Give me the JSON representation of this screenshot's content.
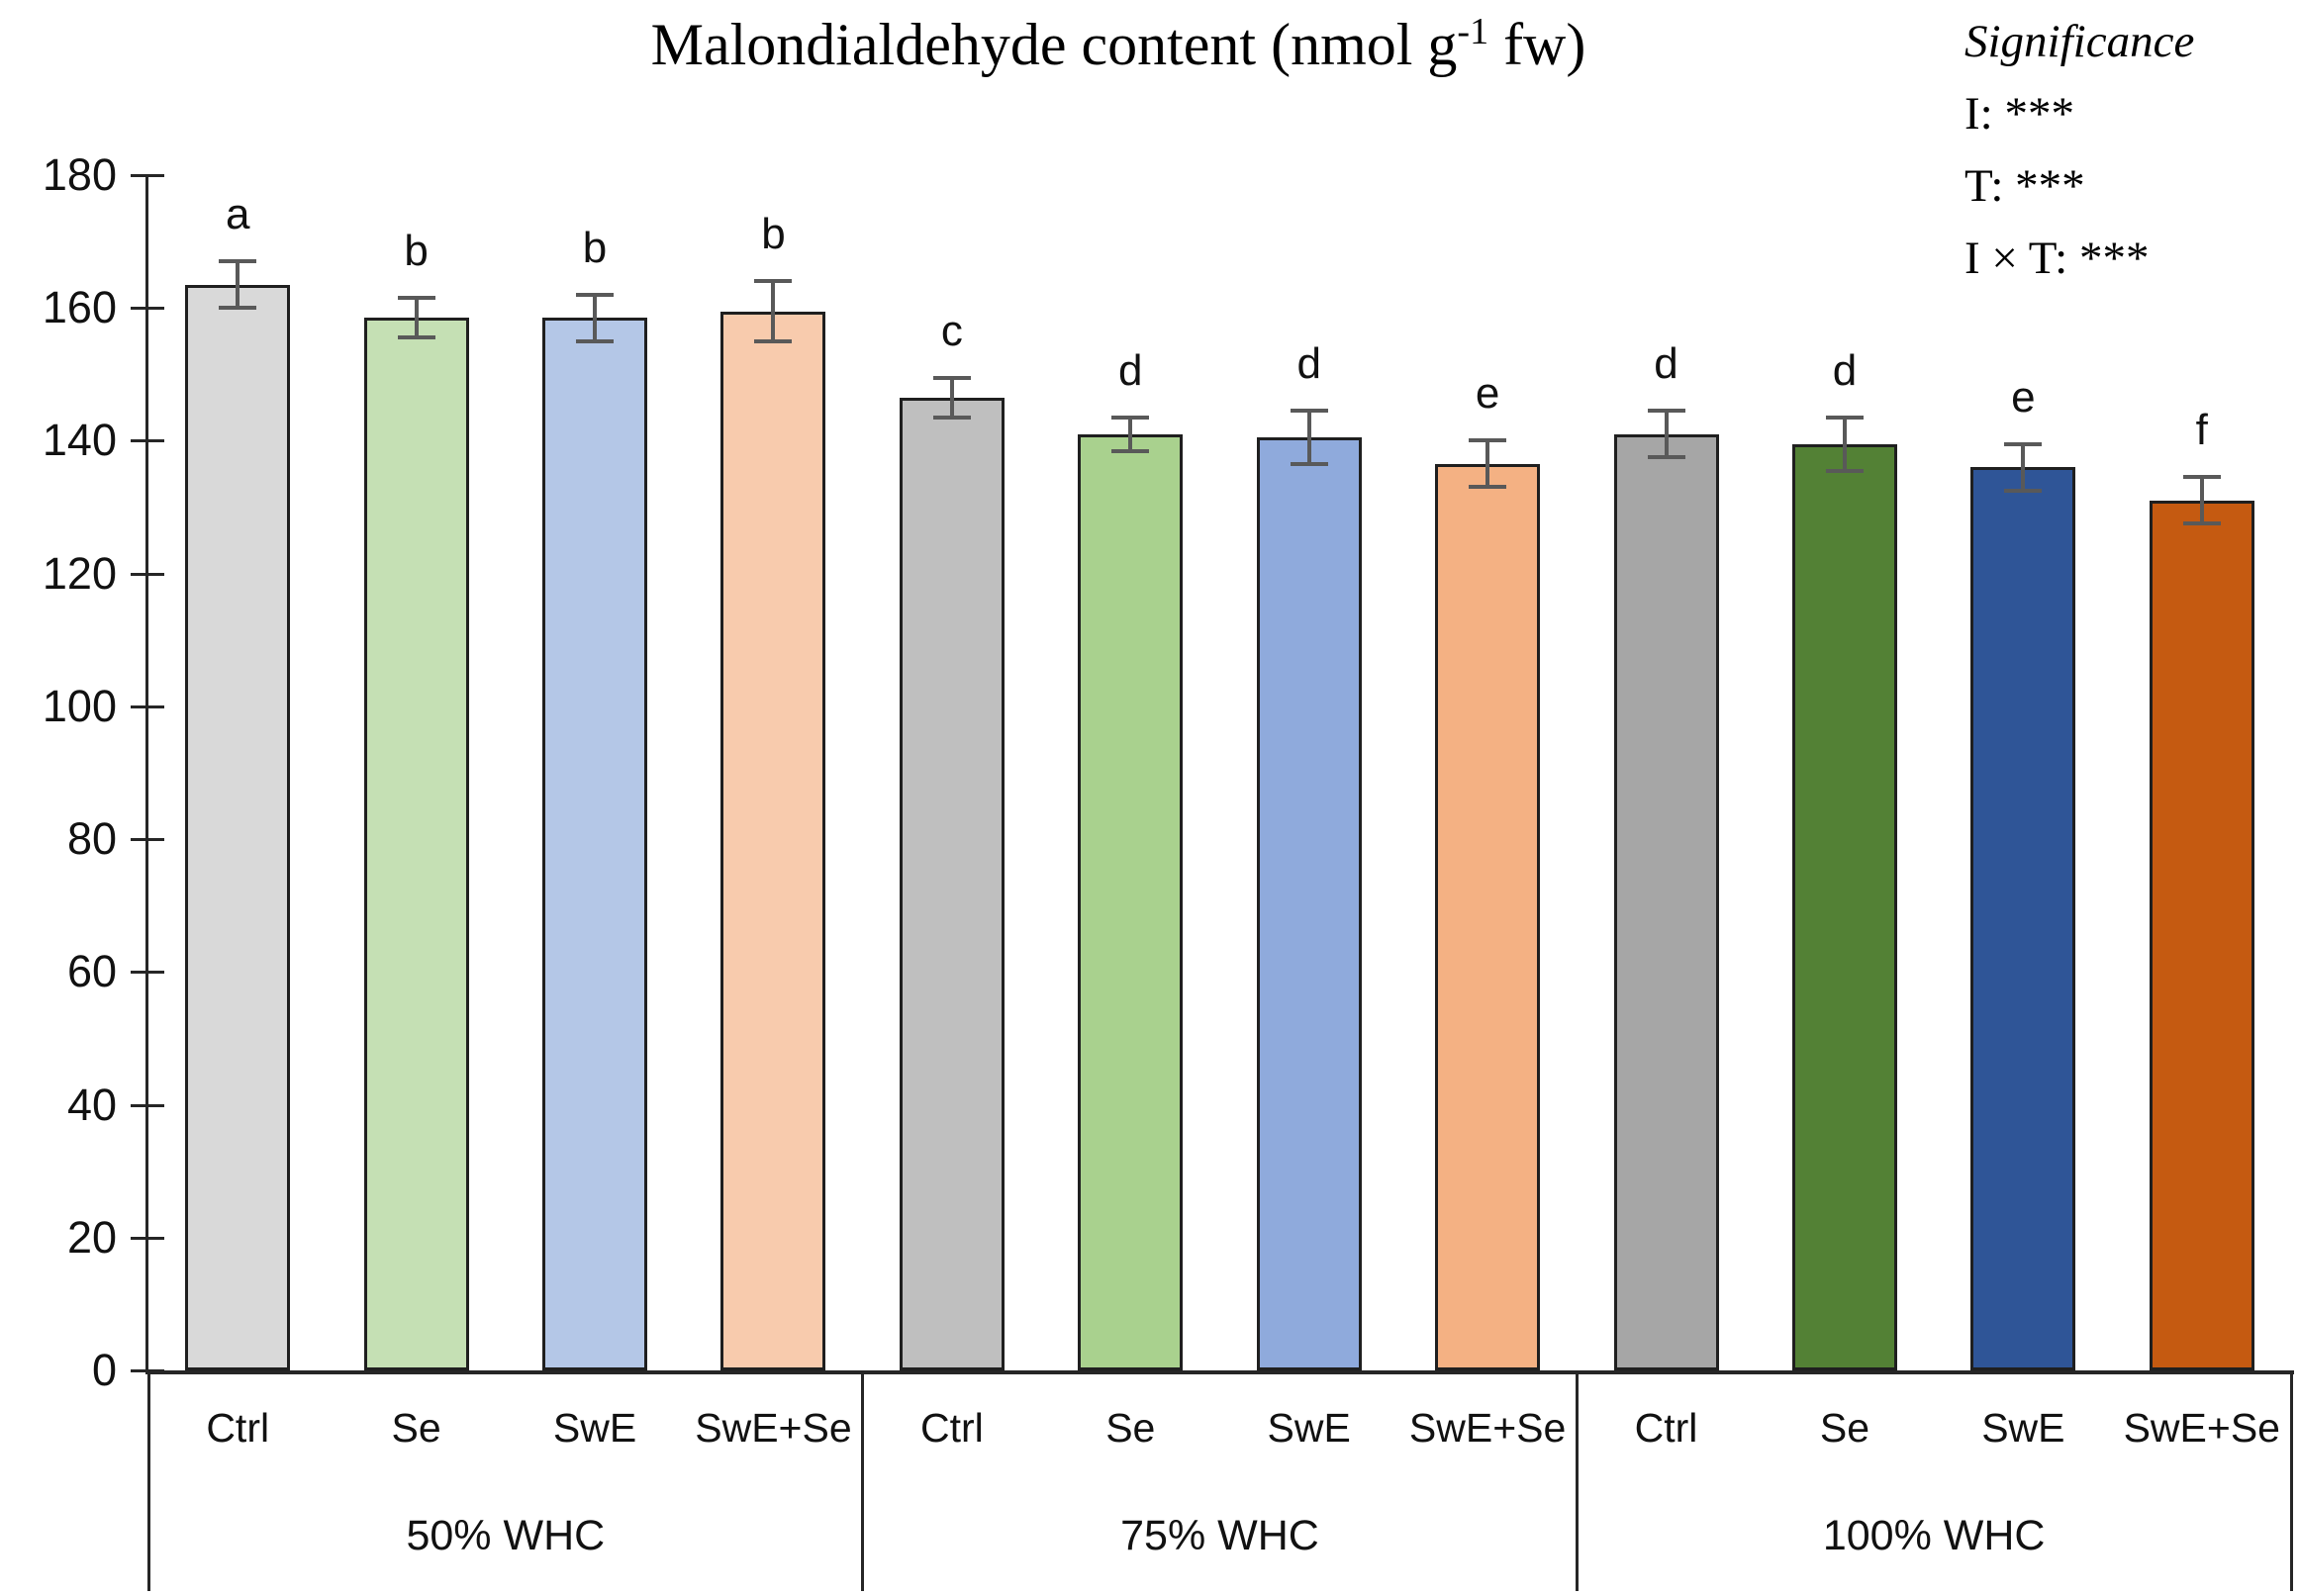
{
  "title": {
    "prefix": "Malondialdehyde content (nmol g",
    "superscript": "-1",
    "suffix": " fw)"
  },
  "significance": {
    "heading": "Significance",
    "lines": [
      "I: ***",
      "T: ***",
      "I × T: ***"
    ]
  },
  "chart_data": {
    "type": "bar",
    "title": "Malondialdehyde content (nmol g⁻¹ fw)",
    "xlabel": "",
    "ylabel": "",
    "ylim": [
      0,
      180
    ],
    "yticks": [
      0,
      20,
      40,
      60,
      80,
      100,
      120,
      140,
      160,
      180
    ],
    "grid": false,
    "legend": "none",
    "error_bars": true,
    "annotations": [
      "Significance",
      "I: ***",
      "T: ***",
      "I × T: ***"
    ],
    "groups": [
      {
        "label": "50% WHC",
        "bars": [
          {
            "treatment": "Ctrl",
            "value": 163.5,
            "error": 3.5,
            "letter": "a",
            "color": "#d9d9d9"
          },
          {
            "treatment": "Se",
            "value": 158.5,
            "error": 3.0,
            "letter": "b",
            "color": "#c5e0b4"
          },
          {
            "treatment": "SwE",
            "value": 158.5,
            "error": 3.5,
            "letter": "b",
            "color": "#b4c7e7"
          },
          {
            "treatment": "SwE+Se",
            "value": 159.5,
            "error": 4.5,
            "letter": "b",
            "color": "#f8cbad"
          }
        ]
      },
      {
        "label": "75% WHC",
        "bars": [
          {
            "treatment": "Ctrl",
            "value": 146.5,
            "error": 3.0,
            "letter": "c",
            "color": "#bfbfbf"
          },
          {
            "treatment": "Se",
            "value": 141.0,
            "error": 2.5,
            "letter": "d",
            "color": "#a9d18e"
          },
          {
            "treatment": "SwE",
            "value": 140.5,
            "error": 4.0,
            "letter": "d",
            "color": "#8faadc"
          },
          {
            "treatment": "SwE+Se",
            "value": 136.5,
            "error": 3.5,
            "letter": "e",
            "color": "#f4b183"
          }
        ]
      },
      {
        "label": "100% WHC",
        "bars": [
          {
            "treatment": "Ctrl",
            "value": 141.0,
            "error": 3.5,
            "letter": "d",
            "color": "#a6a6a6"
          },
          {
            "treatment": "Se",
            "value": 139.5,
            "error": 4.0,
            "letter": "d",
            "color": "#538135"
          },
          {
            "treatment": "SwE",
            "value": 136.0,
            "error": 3.5,
            "letter": "e",
            "color": "#2f5597"
          },
          {
            "treatment": "SwE+Se",
            "value": 131.0,
            "error": 3.5,
            "letter": "f",
            "color": "#c55a11"
          }
        ]
      }
    ],
    "colors": {
      "axis": "#262626",
      "error_bar": "#595959",
      "bar_border": "#1f1f1f"
    }
  }
}
